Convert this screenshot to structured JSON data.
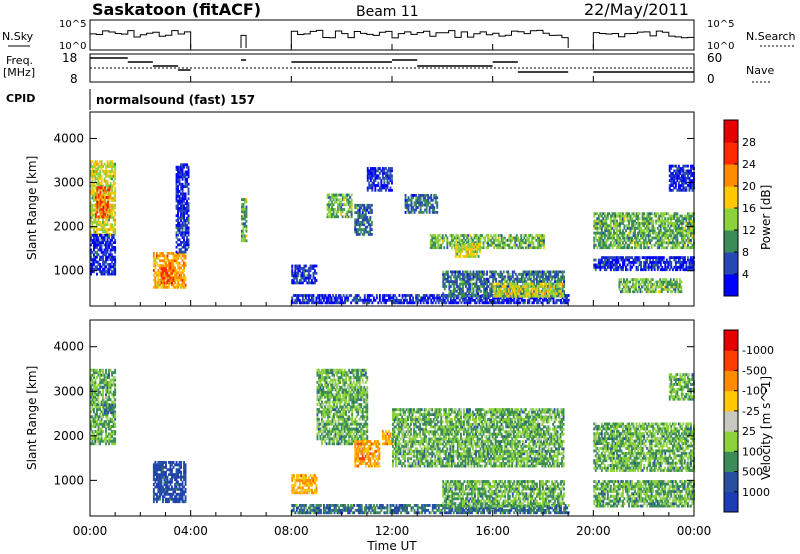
{
  "header": {
    "station": "Saskatoon (fitACF)",
    "beam": "Beam 11",
    "date": "22/May/2011"
  },
  "labels": {
    "nsky": "N.Sky",
    "nsearch": "N.Search",
    "freq_line1": "Freq.",
    "freq_line2": "[MHz]",
    "nave": "Nave",
    "cpid": "CPID",
    "cpid_value": "normalsound (fast) 157",
    "nsky_ticks": [
      "10^5",
      "10^0"
    ],
    "nsearch_ticks": [
      "10^5",
      "10^0"
    ],
    "freq_ticks": [
      "18",
      "8"
    ],
    "nave_ticks": [
      "60",
      "0"
    ]
  },
  "chart_data": [
    {
      "type": "heatmap",
      "name": "power",
      "ylabel": "Slant Range [km]",
      "ylim": [
        200,
        4600
      ],
      "yticks": [
        1000,
        2000,
        3000,
        4000
      ],
      "xlim": [
        0,
        24
      ],
      "colorbar": {
        "label": "Power [dB]",
        "levels": [
          4,
          8,
          12,
          16,
          20,
          24,
          28
        ],
        "colors": [
          "#0000ff",
          "#2848b4",
          "#3c8c5a",
          "#8cd23c",
          "#ffc800",
          "#ff8c00",
          "#ff2800",
          "#e60000"
        ]
      },
      "regions": [
        {
          "t": [
            0.0,
            1.0
          ],
          "r": [
            1800,
            3500
          ],
          "level": 20
        },
        {
          "t": [
            0.2,
            0.8
          ],
          "r": [
            2200,
            2900
          ],
          "level": 28
        },
        {
          "t": [
            0.0,
            1.0
          ],
          "r": [
            900,
            1800
          ],
          "level": 8
        },
        {
          "t": [
            2.5,
            3.8
          ],
          "r": [
            600,
            1400
          ],
          "level": 24
        },
        {
          "t": [
            2.8,
            3.3
          ],
          "r": [
            700,
            1100
          ],
          "level": 28
        },
        {
          "t": [
            3.4,
            3.9
          ],
          "r": [
            1400,
            3400
          ],
          "level": 8
        },
        {
          "t": [
            6.0,
            6.2
          ],
          "r": [
            1600,
            2600
          ],
          "level": 16
        },
        {
          "t": [
            8.0,
            9.0
          ],
          "r": [
            700,
            1100
          ],
          "level": 8
        },
        {
          "t": [
            8.0,
            19.0
          ],
          "r": [
            250,
            450
          ],
          "level": 8
        },
        {
          "t": [
            9.4,
            10.4
          ],
          "r": [
            2200,
            2700
          ],
          "level": 16
        },
        {
          "t": [
            10.5,
            11.2
          ],
          "r": [
            1800,
            2500
          ],
          "level": 12
        },
        {
          "t": [
            11.0,
            12.0
          ],
          "r": [
            2800,
            3300
          ],
          "level": 8
        },
        {
          "t": [
            12.5,
            13.8
          ],
          "r": [
            2300,
            2700
          ],
          "level": 12
        },
        {
          "t": [
            13.5,
            18.0
          ],
          "r": [
            1500,
            1800
          ],
          "level": 16
        },
        {
          "t": [
            14.5,
            15.5
          ],
          "r": [
            1300,
            1600
          ],
          "level": 20
        },
        {
          "t": [
            14.0,
            18.8
          ],
          "r": [
            400,
            1000
          ],
          "level": 12
        },
        {
          "t": [
            16.0,
            18.8
          ],
          "r": [
            400,
            700
          ],
          "level": 20
        },
        {
          "t": [
            20.0,
            24.0
          ],
          "r": [
            1500,
            2300
          ],
          "level": 16
        },
        {
          "t": [
            20.0,
            24.0
          ],
          "r": [
            1000,
            1300
          ],
          "level": 8
        },
        {
          "t": [
            21.0,
            23.5
          ],
          "r": [
            500,
            800
          ],
          "level": 16
        },
        {
          "t": [
            23.0,
            24.0
          ],
          "r": [
            2800,
            3400
          ],
          "level": 8
        }
      ]
    },
    {
      "type": "heatmap",
      "name": "velocity",
      "ylabel": "Slant Range [km]",
      "xlabel": "Time UT",
      "ylim": [
        200,
        4600
      ],
      "yticks": [
        1000,
        2000,
        3000,
        4000
      ],
      "xlim": [
        0,
        24
      ],
      "xticks": [
        "00:00",
        "04:00",
        "08:00",
        "12:00",
        "16:00",
        "20:00",
        "00:00"
      ],
      "colorbar": {
        "label": "Velocity [m s^-1]",
        "levels": [
          1000,
          500,
          100,
          25,
          -25,
          -100,
          -500,
          -1000
        ],
        "colors": [
          "#1e3cb4",
          "#2850a0",
          "#3c8c5a",
          "#8cd23c",
          "#c8c8c0",
          "#ffc800",
          "#ff8c00",
          "#ff3c00",
          "#e60000"
        ]
      },
      "regions": [
        {
          "t": [
            0.0,
            1.0
          ],
          "r": [
            1800,
            3500
          ],
          "level": 25
        },
        {
          "t": [
            0.5,
            0.9
          ],
          "r": [
            2500,
            2700
          ],
          "level": 100
        },
        {
          "t": [
            2.5,
            3.8
          ],
          "r": [
            500,
            1400
          ],
          "level": 500
        },
        {
          "t": [
            8.0,
            9.0
          ],
          "r": [
            700,
            1100
          ],
          "level": -500
        },
        {
          "t": [
            8.0,
            19.0
          ],
          "r": [
            250,
            450
          ],
          "level": 100
        },
        {
          "t": [
            9.0,
            11.0
          ],
          "r": [
            1800,
            3500
          ],
          "level": 25
        },
        {
          "t": [
            10.5,
            11.5
          ],
          "r": [
            1300,
            1900
          ],
          "level": -500
        },
        {
          "t": [
            11.6,
            12.0
          ],
          "r": [
            1800,
            2100
          ],
          "level": -500
        },
        {
          "t": [
            12.0,
            18.8
          ],
          "r": [
            1300,
            2600
          ],
          "level": 25
        },
        {
          "t": [
            14.0,
            18.8
          ],
          "r": [
            400,
            1000
          ],
          "level": 25
        },
        {
          "t": [
            20.0,
            24.0
          ],
          "r": [
            1200,
            2300
          ],
          "level": 25
        },
        {
          "t": [
            20.0,
            24.0
          ],
          "r": [
            400,
            1000
          ],
          "level": 25
        },
        {
          "t": [
            23.0,
            24.0
          ],
          "r": [
            2800,
            3400
          ],
          "level": 25
        }
      ]
    }
  ]
}
